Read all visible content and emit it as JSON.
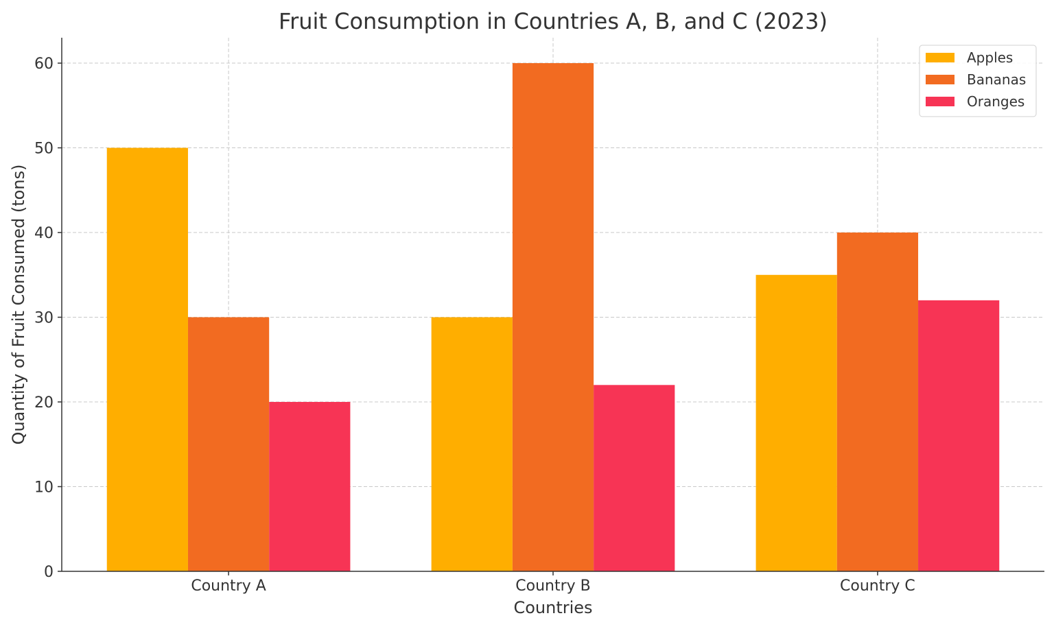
{
  "chart_data": {
    "type": "bar",
    "title": "Fruit Consumption in Countries A, B, and C (2023)",
    "xlabel": "Countries",
    "ylabel": "Quantity of Fruit Consumed (tons)",
    "categories": [
      "Country A",
      "Country B",
      "Country C"
    ],
    "series": [
      {
        "name": "Apples",
        "values": [
          50,
          30,
          35
        ],
        "color": "#FFAE00"
      },
      {
        "name": "Bananas",
        "values": [
          30,
          60,
          40
        ],
        "color": "#F26B21"
      },
      {
        "name": "Oranges",
        "values": [
          20,
          22,
          32
        ],
        "color": "#F73455"
      }
    ],
    "ylim": [
      0,
      63
    ],
    "yticks": [
      0,
      10,
      20,
      30,
      40,
      50,
      60
    ],
    "grid": true,
    "legend": "top-right"
  }
}
